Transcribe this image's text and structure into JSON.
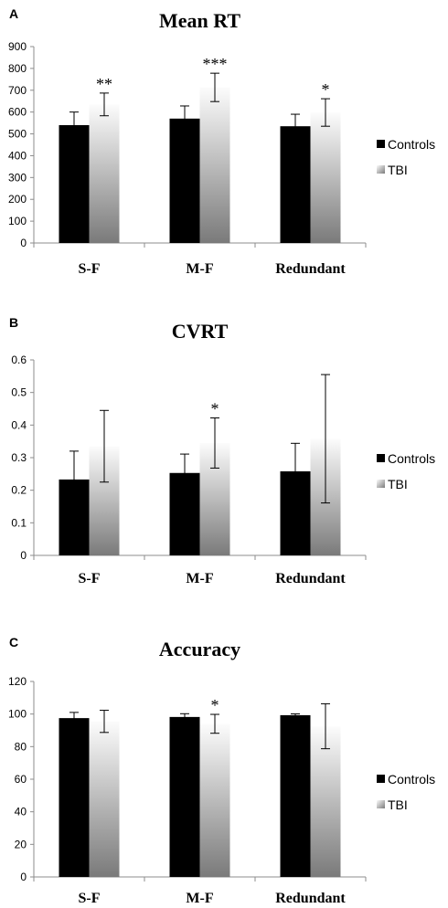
{
  "chart_data": [
    {
      "panel": "A",
      "type": "bar",
      "title": "Mean RT",
      "categories": [
        "S-F",
        "M-F",
        "Redundant"
      ],
      "series": [
        {
          "name": "Controls",
          "values": [
            540,
            570,
            535
          ],
          "errors": [
            60,
            58,
            55
          ]
        },
        {
          "name": "TBI",
          "values": [
            635,
            713,
            598
          ],
          "errors": [
            52,
            65,
            63
          ]
        }
      ],
      "significance": [
        "**",
        "***",
        "*"
      ],
      "ylim": [
        0,
        900
      ],
      "yticks": [
        0,
        100,
        200,
        300,
        400,
        500,
        600,
        700,
        800,
        900
      ],
      "ytick_labels": [
        "0",
        "100",
        "200",
        "300",
        "400",
        "500",
        "600",
        "700",
        "800",
        "900"
      ],
      "legend": "right",
      "grid": false
    },
    {
      "panel": "B",
      "type": "bar",
      "title": "CVRT",
      "categories": [
        "S-F",
        "M-F",
        "Redundant"
      ],
      "series": [
        {
          "name": "Controls",
          "values": [
            0.233,
            0.253,
            0.258
          ],
          "errors": [
            0.087,
            0.058,
            0.086
          ]
        },
        {
          "name": "TBI",
          "values": [
            0.335,
            0.345,
            0.358
          ],
          "errors": [
            0.11,
            0.077,
            0.197
          ]
        }
      ],
      "significance": [
        "",
        "*",
        ""
      ],
      "ylim": [
        0,
        0.6
      ],
      "yticks": [
        0,
        0.1,
        0.2,
        0.3,
        0.4,
        0.5,
        0.6
      ],
      "ytick_labels": [
        "0",
        "0.1",
        "0.2",
        "0.3",
        "0.4",
        "0.5",
        "0.6"
      ],
      "legend": "right",
      "grid": false
    },
    {
      "panel": "C",
      "type": "bar",
      "title": "Accuracy",
      "categories": [
        "S-F",
        "M-F",
        "Redundant"
      ],
      "series": [
        {
          "name": "Controls",
          "values": [
            97.5,
            98.2,
            99.3
          ],
          "errors": [
            3.5,
            2.0,
            0.8
          ]
        },
        {
          "name": "TBI",
          "values": [
            95.5,
            94.0,
            92.5
          ],
          "errors": [
            6.8,
            5.8,
            13.8
          ]
        }
      ],
      "significance": [
        "",
        "*",
        ""
      ],
      "ylim": [
        0,
        120
      ],
      "yticks": [
        0,
        20,
        40,
        60,
        80,
        100,
        120
      ],
      "ytick_labels": [
        "0",
        "20",
        "40",
        "60",
        "80",
        "100",
        "120"
      ],
      "legend": "right",
      "grid": false
    }
  ],
  "colors": {
    "controls": "#000000",
    "tbi_light": "#fcfcfc",
    "tbi_dark": "#7a7a7a",
    "axis": "#8c8c8c"
  }
}
